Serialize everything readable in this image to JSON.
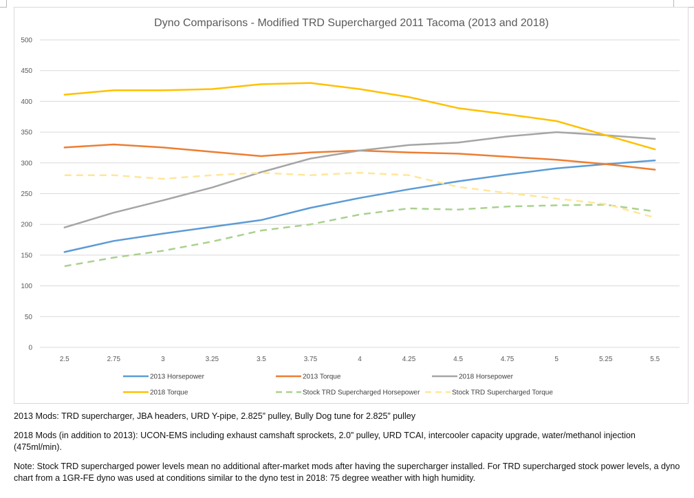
{
  "chart_data": {
    "type": "line",
    "title": "Dyno Comparisons - Modified TRD Supercharged 2011 Tacoma (2013 and 2018)",
    "xlabel": "",
    "ylabel": "",
    "categories": [
      "2.5",
      "2.75",
      "3",
      "3.25",
      "3.5",
      "3.75",
      "4",
      "4.25",
      "4.5",
      "4.75",
      "5",
      "5.25",
      "5.5"
    ],
    "y_ticks": [
      "0",
      "50",
      "100",
      "150",
      "200",
      "250",
      "300",
      "350",
      "400",
      "450",
      "500"
    ],
    "ylim": [
      0,
      500
    ],
    "grid": true,
    "legend_position": "bottom",
    "series": [
      {
        "name": "2013 Horsepower",
        "color": "#5b9bd5",
        "dash": "solid",
        "values": [
          155,
          173,
          185,
          196,
          207,
          227,
          243,
          257,
          270,
          281,
          291,
          298,
          304
        ]
      },
      {
        "name": "2013 Torque",
        "color": "#ed7d31",
        "dash": "solid",
        "values": [
          325,
          330,
          325,
          318,
          311,
          317,
          320,
          317,
          315,
          310,
          305,
          298,
          289
        ]
      },
      {
        "name": "2018 Horsepower",
        "color": "#a5a5a5",
        "dash": "solid",
        "values": [
          195,
          219,
          239,
          260,
          285,
          307,
          320,
          329,
          333,
          343,
          350,
          345,
          339
        ]
      },
      {
        "name": "2018 Torque",
        "color": "#ffc000",
        "dash": "solid",
        "values": [
          411,
          418,
          418,
          420,
          428,
          430,
          420,
          407,
          389,
          379,
          368,
          345,
          322
        ]
      },
      {
        "name": "Stock TRD Supercharged Horsepower",
        "color": "#a9d18e",
        "dash": "dashed",
        "values": [
          132,
          146,
          157,
          172,
          190,
          200,
          216,
          226,
          224,
          229,
          231,
          232,
          221
        ]
      },
      {
        "name": "Stock TRD Supercharged Torque",
        "color": "#ffe699",
        "dash": "dashed",
        "values": [
          280,
          280,
          274,
          280,
          284,
          280,
          284,
          280,
          261,
          251,
          242,
          233,
          211
        ]
      }
    ]
  },
  "notes": {
    "mods_2013": "2013 Mods: TRD supercharger, JBA headers, URD Y-pipe, 2.825” pulley, Bully Dog tune for 2.825” pulley",
    "mods_2018": "2018 Mods (in addition to 2013): UCON-EMS including exhaust camshaft sprockets, 2.0” pulley, URD TCAI, intercooler capacity upgrade, water/methanol injection (475ml/min).",
    "stock_note": "Note: Stock TRD supercharged power levels mean no additional after-market mods after having the supercharger installed. For TRD supercharged stock power levels, a dyno chart from a 1GR-FE dyno was used at conditions similar to the dyno test in 2018: 75 degree weather with high humidity."
  }
}
